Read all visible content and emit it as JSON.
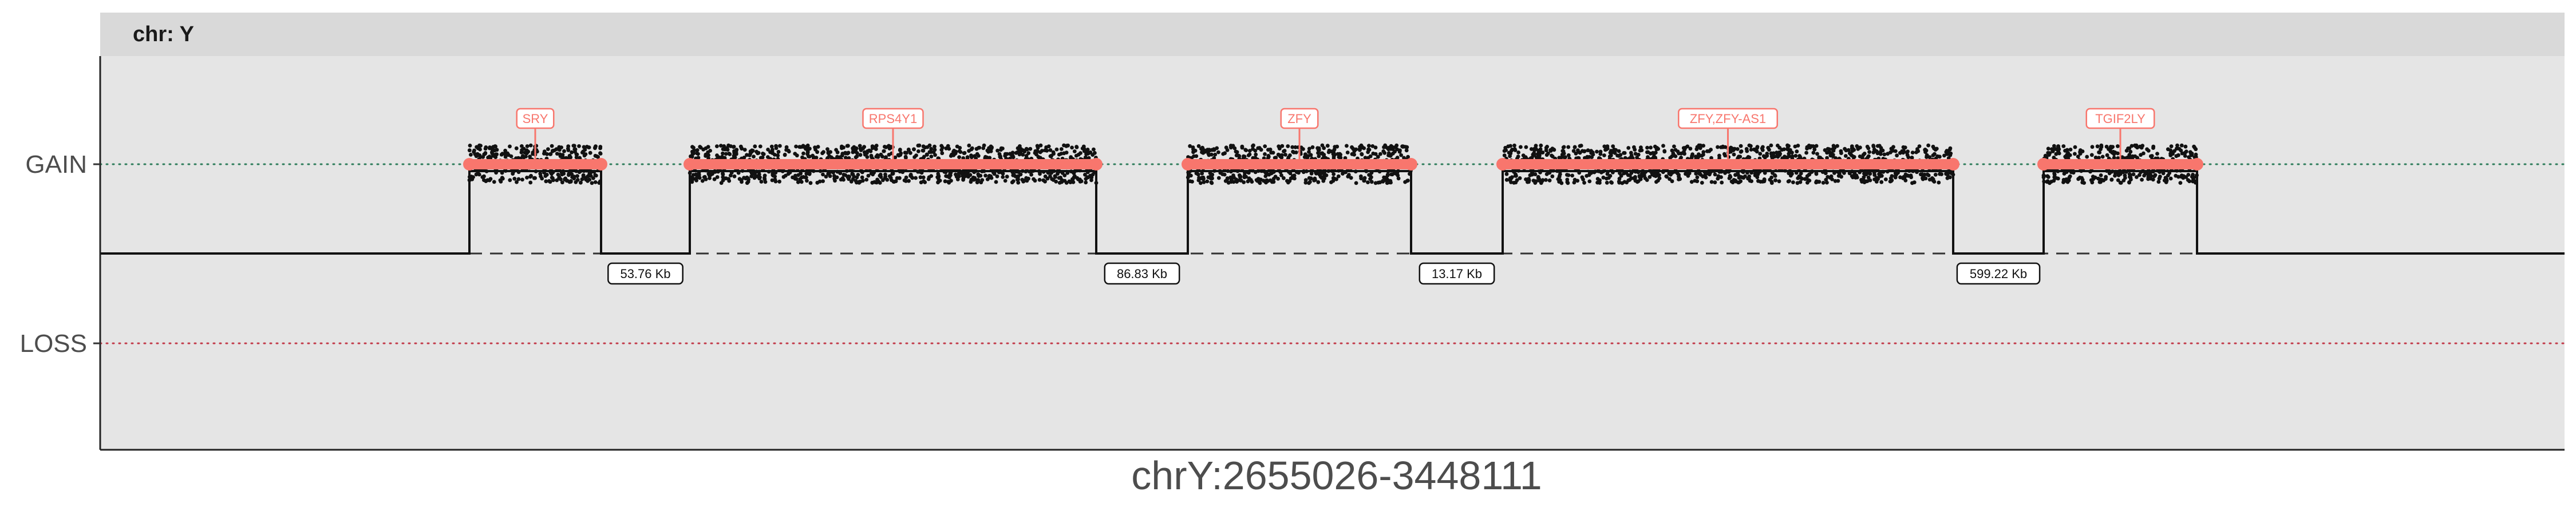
{
  "chart_data": {
    "type": "scatter",
    "title": "",
    "facet_label": "chr: Y",
    "xlabel": "chrY:2655026-3448111",
    "ylabel": "",
    "y_categories": [
      "GAIN",
      "LOSS"
    ],
    "reference_lines": [
      {
        "category": "GAIN",
        "style": "dotted",
        "color": "#2e7d5b"
      },
      {
        "category": "LOSS",
        "style": "dotted",
        "color": "#c23b4a"
      }
    ],
    "segments": [
      {
        "gene": "SRY",
        "start": 0,
        "end": 1,
        "state": "GAIN"
      },
      {
        "gene": "RPS4Y1",
        "start": 2,
        "end": 5,
        "state": "GAIN"
      },
      {
        "gene": "ZFY",
        "start": 6,
        "end": 8,
        "state": "GAIN"
      },
      {
        "gene": "ZFY,ZFY-AS1",
        "start": 9,
        "end": 12.5,
        "state": "GAIN"
      },
      {
        "gene": "TGIF2LY",
        "start": 13.5,
        "end": 14.7,
        "state": "GAIN"
      }
    ],
    "gaps": [
      "53.76 Kb",
      "86.83 Kb",
      "13.17 Kb",
      "599.22 Kb"
    ],
    "colors": {
      "panel": "#e5e5e5",
      "strip": "#d9d9d9",
      "gene": "#f8766d",
      "points": "#111111",
      "gain_line": "#2e7d5b",
      "loss_line": "#c23b4a"
    },
    "grid": false
  }
}
